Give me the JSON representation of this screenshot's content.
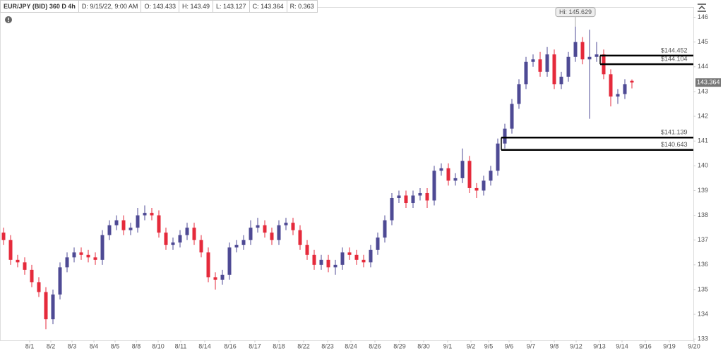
{
  "header": {
    "symbol": "EUR/JPY (BID) 360 D 4h",
    "date": "D: 9/15/22, 9:00 AM",
    "open": "O: 143.433",
    "high": "H: 143.49",
    "low": "L: 143.127",
    "close": "C: 143.364",
    "range": "R: 0.363"
  },
  "chart_data": {
    "type": "candlestick",
    "up_color": "#4e4a94",
    "down_color": "#e52a3b",
    "x": [
      0,
      1,
      2,
      3,
      4,
      5,
      6,
      7,
      8,
      9,
      10,
      11,
      12,
      13,
      14,
      15,
      16,
      17,
      18,
      19,
      20,
      21,
      22,
      23,
      24,
      25,
      26,
      27,
      28,
      29,
      30,
      31,
      32,
      33,
      34,
      35,
      36,
      37,
      38,
      39,
      40,
      41,
      42,
      43,
      44,
      45,
      46,
      47,
      48,
      49,
      50,
      51,
      52,
      53,
      54,
      55,
      56,
      57,
      58,
      59,
      60,
      61,
      62,
      63,
      64,
      65,
      66,
      67,
      68,
      69,
      70,
      71,
      72,
      73,
      74,
      75,
      76,
      77,
      78,
      79,
      80,
      81,
      82,
      83,
      84,
      85,
      86,
      87,
      88,
      89
    ],
    "open": [
      137.3,
      137.0,
      136.2,
      136.1,
      135.8,
      135.3,
      134.9,
      133.8,
      134.8,
      135.9,
      136.3,
      136.5,
      136.4,
      136.3,
      136.2,
      137.2,
      137.6,
      137.8,
      137.4,
      137.5,
      138.0,
      138.1,
      138.0,
      137.3,
      136.8,
      136.9,
      137.2,
      137.5,
      137.0,
      136.5,
      135.5,
      135.4,
      135.6,
      136.7,
      136.8,
      137.0,
      137.5,
      137.6,
      137.3,
      137.0,
      137.6,
      137.7,
      137.4,
      136.8,
      136.4,
      136.0,
      136.2,
      135.9,
      136.0,
      136.5,
      136.4,
      136.2,
      136.1,
      136.6,
      137.1,
      137.8,
      138.7,
      138.8,
      138.5,
      138.8,
      138.9,
      138.6,
      139.8,
      139.9,
      139.4,
      139.5,
      140.2,
      139.1,
      139.0,
      139.4,
      139.8,
      140.9,
      141.5,
      142.5,
      143.3,
      144.2,
      144.3,
      143.8,
      144.5,
      143.3,
      143.6,
      144.4,
      145.0,
      144.3,
      144.4,
      144.5,
      143.7,
      142.8,
      142.9,
      143.433
    ],
    "high": [
      137.5,
      137.2,
      136.4,
      136.3,
      136.0,
      135.5,
      135.1,
      135.0,
      136.1,
      136.5,
      136.7,
      136.7,
      136.6,
      136.5,
      137.4,
      137.8,
      138.0,
      138.0,
      137.7,
      138.3,
      138.4,
      138.3,
      138.2,
      137.5,
      137.1,
      137.4,
      137.7,
      137.7,
      137.2,
      136.7,
      135.7,
      135.8,
      136.9,
      137.0,
      137.2,
      137.8,
      137.9,
      137.8,
      137.5,
      137.8,
      137.9,
      137.9,
      137.6,
      137.0,
      136.6,
      136.4,
      136.4,
      136.2,
      136.7,
      136.7,
      136.6,
      136.4,
      136.8,
      137.3,
      138.0,
      138.9,
      139.0,
      139.0,
      139.0,
      139.1,
      139.1,
      140.0,
      140.1,
      140.1,
      139.7,
      140.7,
      140.4,
      139.3,
      139.6,
      140.0,
      141.1,
      141.7,
      142.7,
      143.5,
      144.4,
      144.5,
      144.6,
      144.8,
      144.7,
      143.8,
      144.6,
      145.629,
      145.2,
      145.5,
      145.0,
      144.7,
      143.9,
      143.1,
      143.5,
      143.49
    ],
    "low": [
      136.8,
      136.0,
      135.9,
      135.6,
      135.1,
      134.7,
      133.4,
      133.6,
      134.6,
      135.7,
      136.1,
      136.2,
      136.1,
      136.0,
      136.0,
      137.0,
      137.4,
      137.2,
      137.2,
      137.3,
      137.8,
      137.8,
      137.1,
      136.6,
      136.6,
      136.7,
      137.0,
      136.8,
      136.3,
      135.3,
      135.0,
      135.2,
      135.4,
      136.5,
      136.6,
      136.8,
      137.3,
      137.1,
      136.8,
      136.8,
      137.4,
      137.2,
      136.6,
      136.2,
      135.8,
      135.8,
      135.7,
      135.6,
      135.8,
      136.2,
      136.0,
      135.9,
      135.9,
      136.4,
      136.9,
      137.6,
      138.5,
      138.3,
      138.3,
      138.6,
      138.3,
      138.4,
      139.6,
      139.2,
      139.2,
      139.3,
      138.9,
      138.7,
      138.8,
      139.2,
      139.6,
      140.7,
      141.3,
      142.3,
      143.1,
      144.0,
      143.6,
      143.6,
      143.1,
      143.1,
      143.4,
      144.2,
      144.1,
      141.9,
      144.2,
      143.5,
      142.4,
      142.5,
      142.7,
      143.127
    ],
    "close": [
      137.0,
      136.2,
      136.1,
      135.8,
      135.3,
      134.9,
      133.8,
      134.8,
      135.9,
      136.3,
      136.5,
      136.4,
      136.3,
      136.2,
      137.2,
      137.6,
      137.8,
      137.4,
      137.5,
      138.0,
      138.1,
      138.0,
      137.3,
      136.8,
      136.9,
      137.2,
      137.5,
      137.0,
      136.5,
      135.5,
      135.4,
      135.6,
      136.7,
      136.8,
      137.0,
      137.5,
      137.6,
      137.3,
      137.0,
      137.6,
      137.7,
      137.4,
      136.8,
      136.4,
      136.0,
      136.2,
      135.9,
      136.0,
      136.5,
      136.4,
      136.2,
      136.1,
      136.6,
      137.1,
      137.8,
      138.7,
      138.8,
      138.5,
      138.8,
      138.9,
      138.6,
      139.8,
      139.9,
      139.4,
      139.5,
      140.2,
      139.1,
      139.0,
      139.4,
      139.8,
      140.9,
      141.5,
      142.5,
      143.3,
      144.2,
      144.3,
      143.8,
      144.5,
      143.3,
      143.6,
      144.4,
      145.0,
      144.3,
      144.4,
      144.5,
      143.7,
      142.8,
      142.9,
      143.3,
      143.364
    ],
    "xlim": [
      -0.5,
      98
    ],
    "xticks": [
      {
        "value": 3.7,
        "label": "8/1"
      },
      {
        "value": 6.7,
        "label": "8/2"
      },
      {
        "value": 9.7,
        "label": "8/3"
      },
      {
        "value": 12.8,
        "label": "8/4"
      },
      {
        "value": 15.8,
        "label": "8/5"
      },
      {
        "value": 18.8,
        "label": "8/8"
      },
      {
        "value": 21.9,
        "label": "8/10"
      },
      {
        "value": 25.1,
        "label": "8/11"
      },
      {
        "value": 28.5,
        "label": "8/14"
      },
      {
        "value": 32.1,
        "label": "8/16"
      },
      {
        "value": 35.6,
        "label": "8/17"
      },
      {
        "value": 39,
        "label": "8/18"
      },
      {
        "value": 42.5,
        "label": "8/22"
      },
      {
        "value": 45.9,
        "label": "8/23"
      },
      {
        "value": 49.2,
        "label": "8/24"
      },
      {
        "value": 52.6,
        "label": "8/26"
      },
      {
        "value": 56.1,
        "label": "8/29"
      },
      {
        "value": 59.5,
        "label": "8/30"
      },
      {
        "value": 62.9,
        "label": "9/1"
      },
      {
        "value": 66.2,
        "label": "9/2"
      },
      {
        "value": 68.7,
        "label": "9/5"
      },
      {
        "value": 71.6,
        "label": "9/6"
      },
      {
        "value": 74.7,
        "label": "9/7"
      },
      {
        "value": 78,
        "label": "9/8"
      },
      {
        "value": 81.1,
        "label": "9/12"
      },
      {
        "value": 84.4,
        "label": "9/13"
      },
      {
        "value": 87.6,
        "label": "9/14"
      },
      {
        "value": 90.9,
        "label": "9/16"
      },
      {
        "value": 94.3,
        "label": "9/19"
      },
      {
        "value": 97.8,
        "label": "9/20"
      }
    ],
    "ylim": [
      132.95,
      146.3
    ],
    "yticks": [
      133,
      134,
      135,
      136,
      137,
      138,
      139,
      140,
      141,
      142,
      143,
      144,
      145,
      146
    ],
    "levels": [
      {
        "value": 144.452,
        "label": "$144.452",
        "from": 84.5
      },
      {
        "value": 144.104,
        "label": "$144.104",
        "from": 84.5
      },
      {
        "value": 141.139,
        "label": "$141.139",
        "from": 70.5
      },
      {
        "value": 140.643,
        "label": "$140.643",
        "from": 70.5
      }
    ],
    "high_marker": {
      "index": 81,
      "value": 145.629,
      "label": "Hi: 145.629"
    },
    "last_price": 143.364
  }
}
